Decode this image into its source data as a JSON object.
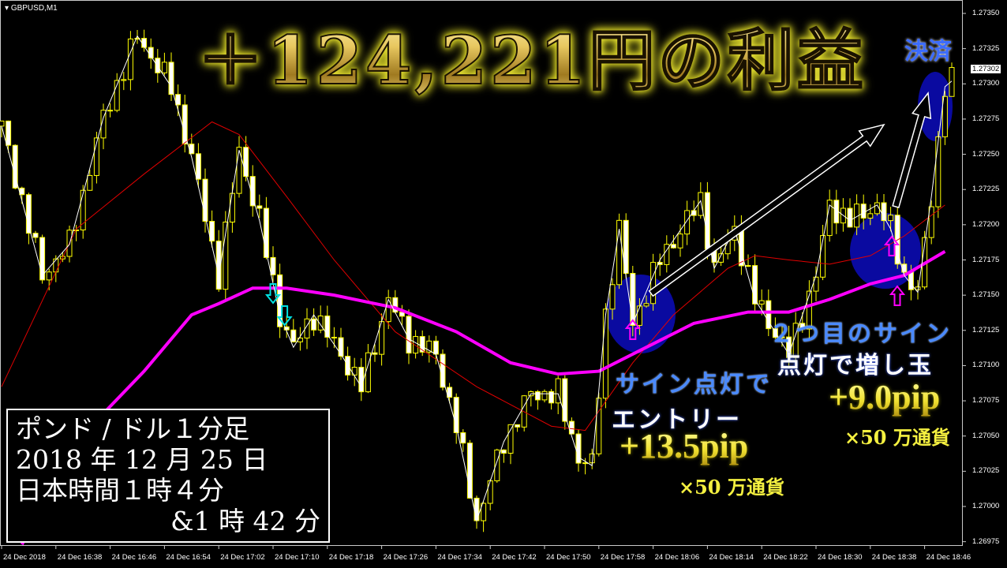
{
  "symbol_label": "GBPUSD,M1",
  "current_price": "1.27302",
  "annotations": {
    "headline": "＋124,221円の利益",
    "settlement": "決済",
    "entry_line1": "サイン点灯で",
    "entry_line2": "エントリー",
    "entry_pips": "+13.5pip",
    "entry_multiplier": "×50 万通貨",
    "add_line1": "２つ目のサイン",
    "add_line2": "点灯で増し玉",
    "add_pips": "+9.0pip",
    "add_multiplier": "×50 万通貨",
    "info": [
      "ポンド / ドル１分足",
      "2018 年 12 月 25 日",
      "日本時間１時４分",
      "&1 時 42 分"
    ]
  },
  "colors": {
    "candle": "#ffff00",
    "line": "#ffffff",
    "ma_fast": "#e00000",
    "ma_slow": "#ff00ff",
    "signal_circle": "#0a0aa0",
    "sell_arrow": "#00e0e0",
    "buy_arrow": "#ff00ff"
  },
  "chart_data": {
    "type": "line",
    "title": "",
    "ylim": [
      1.26975,
      1.2735
    ],
    "y_ticks": [
      "1.27350",
      "1.27325",
      "1.27300",
      "1.27275",
      "1.27250",
      "1.27225",
      "1.27200",
      "1.27175",
      "1.27150",
      "1.27125",
      "1.27100",
      "1.27075",
      "1.27050",
      "1.27025",
      "1.27000",
      "1.26975"
    ],
    "x_ticks": [
      "24 Dec 2018",
      "24 Dec 16:38",
      "24 Dec 16:46",
      "24 Dec 16:54",
      "24 Dec 17:02",
      "24 Dec 17:10",
      "24 Dec 17:18",
      "24 Dec 17:26",
      "24 Dec 17:34",
      "24 Dec 17:42",
      "24 Dec 17:50",
      "24 Dec 17:58",
      "24 Dec 18:06",
      "24 Dec 18:14",
      "24 Dec 18:22",
      "24 Dec 18:30",
      "24 Dec 18:38",
      "24 Dec 18:46"
    ],
    "grid": false,
    "price": {
      "x": [
        "16:30",
        "16:36",
        "16:40",
        "16:45",
        "16:50",
        "16:55",
        "16:58",
        "17:02",
        "17:05",
        "17:08",
        "17:11",
        "17:13",
        "17:16",
        "17:20",
        "17:23",
        "17:27",
        "17:30",
        "17:34",
        "17:37",
        "17:40",
        "17:44",
        "17:48",
        "17:52",
        "17:55",
        "17:57",
        "17:59",
        "18:01",
        "18:03",
        "18:07",
        "18:13",
        "18:15",
        "18:18",
        "18:21",
        "18:26",
        "18:30",
        "18:32",
        "18:35",
        "18:39",
        "18:41",
        "18:43",
        "18:45",
        "18:47",
        "18:49",
        "18:50"
      ],
      "y": [
        1.2727,
        1.27164,
        1.27186,
        1.27276,
        1.27334,
        1.27298,
        1.27248,
        1.27164,
        1.27253,
        1.27203,
        1.27136,
        1.27113,
        1.27136,
        1.27108,
        1.27085,
        1.27147,
        1.27119,
        1.27108,
        1.27057,
        1.2699,
        1.27046,
        1.2708,
        1.2708,
        1.27035,
        1.27029,
        1.27136,
        1.27197,
        1.2713,
        1.27175,
        1.27217,
        1.27169,
        1.27197,
        1.27147,
        1.27108,
        1.27164,
        1.27214,
        1.27203,
        1.27214,
        1.27197,
        1.27164,
        1.27152,
        1.2722,
        1.27298,
        1.27302
      ]
    },
    "ma_fast": {
      "x": [
        "16:30",
        "16:41",
        "16:51",
        "17:01",
        "17:05",
        "17:12",
        "17:19",
        "17:28",
        "17:40",
        "17:51",
        "17:56",
        "18:03",
        "18:09",
        "18:17",
        "18:21",
        "18:26",
        "18:32",
        "18:38",
        "18:43",
        "18:49"
      ],
      "y": [
        1.27085,
        1.27197,
        1.27236,
        1.27273,
        1.27264,
        1.2722,
        1.27175,
        1.27124,
        1.27085,
        1.27057,
        1.27054,
        1.27102,
        1.27136,
        1.27169,
        1.27178,
        1.27175,
        1.27172,
        1.27178,
        1.27192,
        1.27214
      ]
    },
    "ma_slow": {
      "x": [
        "16:33",
        "16:41",
        "16:51",
        "16:58",
        "17:02",
        "17:07",
        "17:12",
        "17:19",
        "17:28",
        "17:37",
        "17:45",
        "17:52",
        "17:58",
        "18:05",
        "18:12",
        "18:20",
        "18:26",
        "18:32",
        "18:38",
        "18:43",
        "18:49"
      ],
      "y": [
        1.26973,
        1.27046,
        1.27096,
        1.27136,
        1.27144,
        1.27155,
        1.27155,
        1.2715,
        1.27141,
        1.27124,
        1.27102,
        1.27094,
        1.27096,
        1.27113,
        1.2713,
        1.27138,
        1.27138,
        1.27147,
        1.27158,
        1.27164,
        1.27181
      ]
    },
    "sell_signals": [
      "17:10",
      "17:11"
    ],
    "buy_signals": [
      "18:03",
      "18:41",
      "18:42"
    ]
  }
}
